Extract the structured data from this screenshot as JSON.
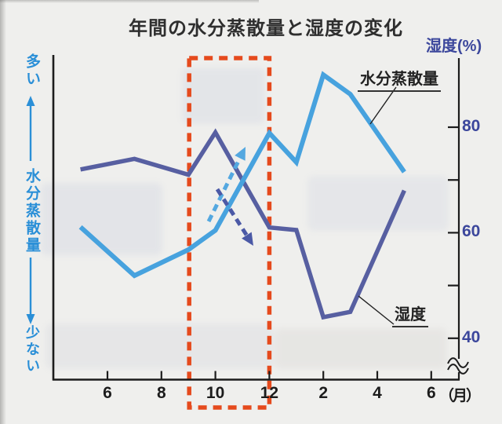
{
  "title": "年間の水分蒸散量と湿度の変化",
  "right_axis": {
    "label": "湿度(%)",
    "axis_break_below": 40
  },
  "left_axis": {
    "top": "多い",
    "label": "水分蒸散量",
    "bottom": "少ない"
  },
  "x_axis": {
    "unit": "（月）"
  },
  "legend": {
    "transpiration": "水分蒸散量",
    "humidity": "湿度"
  },
  "colors": {
    "transpiration_line": "#47a2de",
    "humidity_line": "#575fa1",
    "highlight_box": "#e54a1d",
    "up_arrow": "#54a8e0",
    "down_arrow": "#4b59a6",
    "left_axis_text": "#2a8fd7",
    "right_axis_text": "#3c479c",
    "axis": "#1c1c1c"
  },
  "chart_data": {
    "type": "line",
    "title": "年間の水分蒸散量と湿度の変化",
    "x_unit": "月",
    "x_tick_labels": [
      "6",
      "8",
      "10",
      "12",
      "2",
      "4",
      "6"
    ],
    "x_tick_offsets_from_june": [
      0,
      2,
      4,
      6,
      8,
      10,
      12
    ],
    "point_months": [
      "5",
      "7",
      "9",
      "10",
      "12",
      "1",
      "2",
      "3",
      "5"
    ],
    "month_offsets_from_june": [
      -1,
      1,
      3,
      4,
      6,
      7,
      8,
      9,
      11
    ],
    "series": [
      {
        "name": "水分蒸散量",
        "axis": "left qualitative (少ない=0 … 多い=100)",
        "values": [
          47,
          32,
          40,
          46,
          76,
          67,
          94,
          88,
          64
        ]
      },
      {
        "name": "湿度",
        "axis": "right (%)",
        "values": [
          72,
          74,
          71,
          79,
          61,
          60.5,
          44,
          45,
          68
        ]
      }
    ],
    "y_right_ticks": [
      80,
      70,
      60,
      50,
      40
    ],
    "y_right_labeled_ticks": [
      80,
      60,
      40
    ],
    "y_right_range": [
      40,
      80
    ],
    "y_right_axis_break": true,
    "highlight_box_month_span": [
      "9",
      "12"
    ],
    "annotations": [
      {
        "type": "dashed-arrow",
        "direction": "up-right",
        "series": "水分蒸散量"
      },
      {
        "type": "dashed-arrow",
        "direction": "down-right",
        "series": "湿度"
      }
    ],
    "grid": false,
    "legend_position": "inline-pointer-labels"
  }
}
